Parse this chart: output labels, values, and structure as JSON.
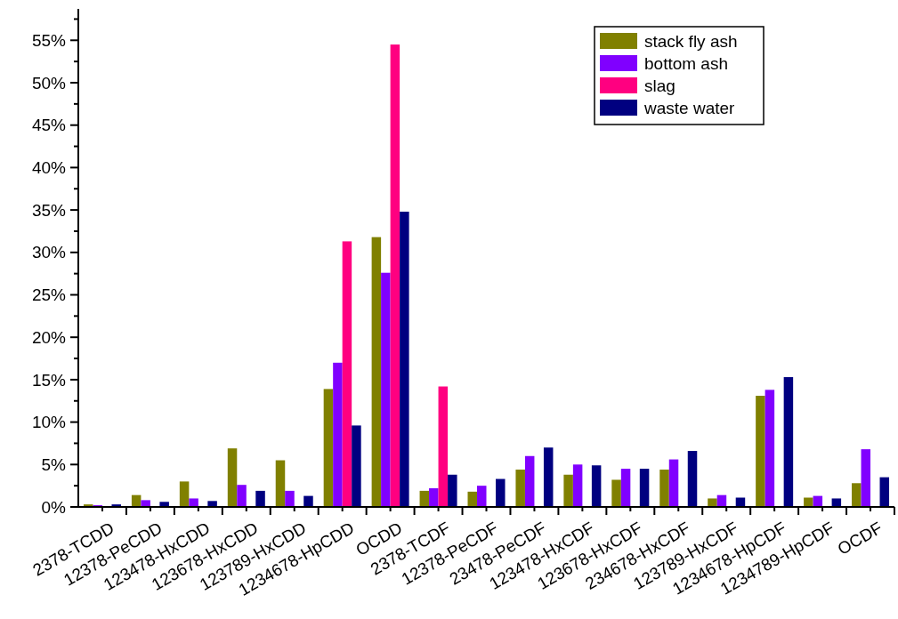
{
  "chart_data": {
    "type": "bar",
    "categories": [
      "2378-TCDD",
      "12378-PeCDD",
      "123478-HxCDD",
      "123678-HxCDD",
      "123789-HxCDD",
      "1234678-HpCDD",
      "OCDD",
      "2378-TCDF",
      "12378-PeCDF",
      "23478-PeCDF",
      "123478-HxCDF",
      "123678-HxCDF",
      "234678-HxCDF",
      "123789-HxCDF",
      "1234678-HpCDF",
      "1234789-HpCDF",
      "OCDF"
    ],
    "series": [
      {
        "name": "stack fly ash",
        "color": "#808000",
        "values": [
          0.3,
          1.4,
          3.0,
          6.9,
          5.5,
          13.9,
          31.8,
          1.9,
          1.8,
          4.4,
          3.8,
          3.2,
          4.4,
          1.0,
          13.1,
          1.1,
          2.8
        ]
      },
      {
        "name": "bottom ash",
        "color": "#8000ff",
        "values": [
          0.2,
          0.8,
          1.0,
          2.6,
          1.9,
          17.0,
          27.6,
          2.2,
          2.5,
          6.0,
          5.0,
          4.5,
          5.6,
          1.4,
          13.8,
          1.3,
          6.8
        ]
      },
      {
        "name": "slag",
        "color": "#ff0080",
        "values": [
          null,
          null,
          null,
          null,
          null,
          31.3,
          54.5,
          14.2,
          null,
          null,
          null,
          null,
          null,
          null,
          null,
          null,
          null
        ]
      },
      {
        "name": "waste water",
        "color": "#000080",
        "values": [
          0.3,
          0.6,
          0.7,
          1.9,
          1.3,
          9.6,
          34.8,
          3.8,
          3.3,
          7.0,
          4.9,
          4.5,
          6.6,
          1.1,
          15.3,
          1.0,
          3.5
        ]
      }
    ],
    "ylim": [
      0,
      58.7
    ],
    "yticks": [
      {
        "value": 0,
        "label": "0%"
      },
      {
        "value": 2.5,
        "label": null
      },
      {
        "value": 5,
        "label": "5%"
      },
      {
        "value": 7.5,
        "label": null
      },
      {
        "value": 10,
        "label": "10%"
      },
      {
        "value": 12.5,
        "label": null
      },
      {
        "value": 15,
        "label": "15%"
      },
      {
        "value": 17.5,
        "label": null
      },
      {
        "value": 20,
        "label": "20%"
      },
      {
        "value": 22.5,
        "label": null
      },
      {
        "value": 25,
        "label": "25%"
      },
      {
        "value": 27.5,
        "label": null
      },
      {
        "value": 30,
        "label": "30%"
      },
      {
        "value": 32.5,
        "label": null
      },
      {
        "value": 35,
        "label": "35%"
      },
      {
        "value": 37.5,
        "label": null
      },
      {
        "value": 40,
        "label": "40%"
      },
      {
        "value": 42.5,
        "label": null
      },
      {
        "value": 45,
        "label": "45%"
      },
      {
        "value": 47.5,
        "label": null
      },
      {
        "value": 50,
        "label": "50%"
      },
      {
        "value": 52.5,
        "label": null
      },
      {
        "value": 55,
        "label": "55%"
      },
      {
        "value": 57.5,
        "label": null
      }
    ],
    "legend": "top right",
    "grid": false
  }
}
